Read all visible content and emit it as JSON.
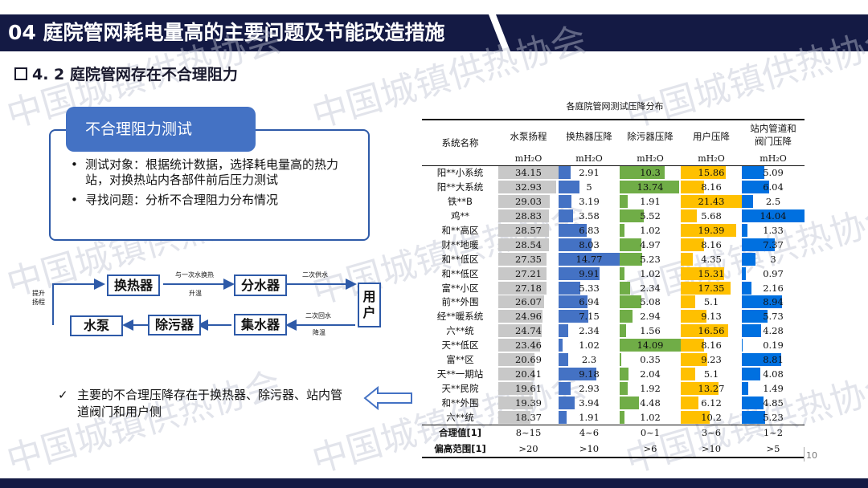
{
  "header": {
    "title": "04 庭院管网耗电量高的主要问题及节能改造措施"
  },
  "subtitle": "4. 2 庭院管网存在不合理阻力",
  "watermark": "中国城镇供热协会",
  "test_box": {
    "label": "不合理阻力测试",
    "bullets": [
      "测试对象：根据统计数据，选择耗电量高的热力站，对换热站内各部件前后压力测试",
      "寻找问题：分析不合理阻力分布情况"
    ]
  },
  "diagram": {
    "nodes": {
      "exchanger": "换热器",
      "distributor": "分水器",
      "user": "用户",
      "pump": "水泵",
      "filter": "除污器",
      "collector": "集水器"
    },
    "labels": {
      "primary": "与一次水换热",
      "heat_up": "升温",
      "secondary_supply": "二次供水",
      "secondary_return": "二次回水",
      "cool_down": "降温",
      "lift": "提升\n扬程"
    }
  },
  "conclusion": {
    "check": "✓",
    "text": "主要的不合理压降存在于换热器、除污器、站内管道阀门和用户侧"
  },
  "table": {
    "title": "各庭院管网测试压降分布",
    "headers": [
      "系统名称",
      "水泵扬程",
      "换热器压降",
      "除污器压降",
      "用户压降",
      "站内管道和阀门压降"
    ],
    "unit": "mH₂O",
    "colors": {
      "pump": "#c8c8c8",
      "exchanger": "#4472c4",
      "filter": "#70ad47",
      "user": "#ffc000",
      "valve": "#0070e0"
    },
    "rows": [
      {
        "name": "阳**小系统",
        "values": [
          "34.15",
          "2.91",
          "10.3",
          "15.86",
          "5.09"
        ]
      },
      {
        "name": "阳**大系统",
        "values": [
          "32.93",
          "5",
          "13.74",
          "8.16",
          "6.04"
        ]
      },
      {
        "name": "铁**B",
        "values": [
          "29.03",
          "3.19",
          "1.91",
          "21.43",
          "2.5"
        ]
      },
      {
        "name": "鸡**",
        "values": [
          "28.83",
          "3.58",
          "5.52",
          "5.68",
          "14.04"
        ]
      },
      {
        "name": "和**高区",
        "values": [
          "28.57",
          "6.83",
          "1.02",
          "19.39",
          "1.33"
        ]
      },
      {
        "name": "财**地暖",
        "values": [
          "28.54",
          "8.03",
          "4.97",
          "8.16",
          "7.37"
        ]
      },
      {
        "name": "和**低区",
        "values": [
          "27.35",
          "14.77",
          "5.23",
          "4.35",
          "3"
        ]
      },
      {
        "name": "和**低区",
        "values": [
          "27.21",
          "9.91",
          "1.02",
          "15.31",
          "0.97"
        ]
      },
      {
        "name": "富**小区",
        "values": [
          "27.18",
          "5.33",
          "2.34",
          "17.35",
          "2.16"
        ]
      },
      {
        "name": "前**外围",
        "values": [
          "26.07",
          "6.94",
          "5.08",
          "5.1",
          "8.94"
        ]
      },
      {
        "name": "经**暖系统",
        "values": [
          "24.96",
          "7.15",
          "2.94",
          "9.13",
          "5.73"
        ]
      },
      {
        "name": "六**统",
        "values": [
          "24.74",
          "2.34",
          "1.56",
          "16.56",
          "4.28"
        ]
      },
      {
        "name": "天**低区",
        "values": [
          "23.46",
          "1.02",
          "14.09",
          "8.16",
          "0.19"
        ]
      },
      {
        "name": "富**区",
        "values": [
          "20.69",
          "2.3",
          "0.35",
          "9.23",
          "8.81"
        ]
      },
      {
        "name": "天**一期站",
        "values": [
          "20.41",
          "9.18",
          "2.04",
          "5.1",
          "4.08"
        ]
      },
      {
        "name": "天**民院",
        "values": [
          "19.61",
          "2.93",
          "1.92",
          "13.27",
          "1.49"
        ]
      },
      {
        "name": "和**外围",
        "values": [
          "19.39",
          "3.94",
          "4.48",
          "6.12",
          "4.85"
        ]
      },
      {
        "name": "六**统",
        "values": [
          "18.37",
          "1.91",
          "1.02",
          "10.2",
          "5.23"
        ]
      }
    ],
    "reasonable": {
      "label": "合理值[1]",
      "values": [
        "8~15",
        "4~6",
        "0~1",
        "3~6",
        "1~2"
      ]
    },
    "excess": {
      "label": "偏高范围[1]",
      "values": [
        ">20",
        ">10",
        ">6",
        ">10",
        ">5"
      ]
    }
  },
  "page_number": "10"
}
